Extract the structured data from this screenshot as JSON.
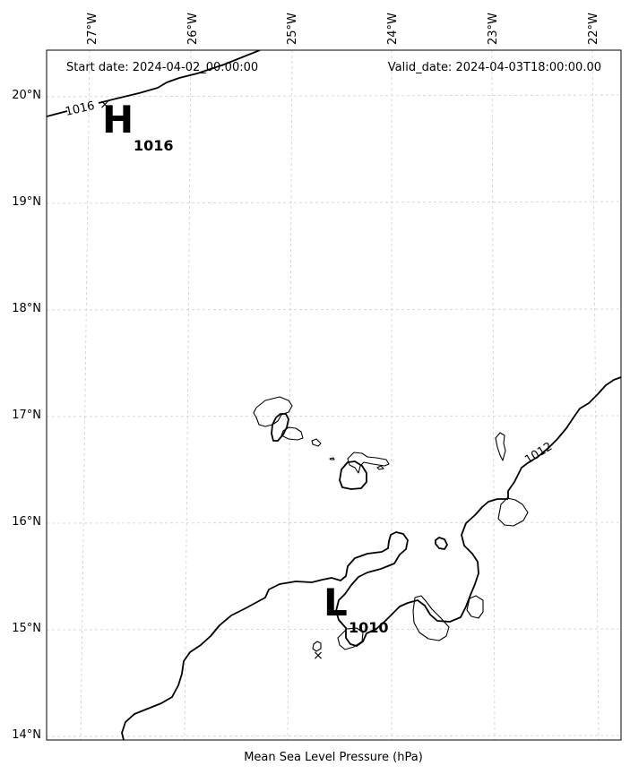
{
  "map": {
    "start_date": "Start date: 2024-04-02_00:00:00",
    "valid_date": "Valid_date: 2024-04-03T18:00:00.00",
    "footer_label": "Mean Sea Level Pressure (hPa)",
    "lon_ticks": [
      "27°W",
      "26°W",
      "25°W",
      "24°W",
      "23°W",
      "22°W"
    ],
    "lat_ticks": [
      "20°N",
      "19°N",
      "18°N",
      "17°N",
      "16°N",
      "15°N",
      "14°N"
    ],
    "isobar_labels": [
      "1016",
      "1012"
    ],
    "high": {
      "letter": "H",
      "value": "1016"
    },
    "low": {
      "letter": "L",
      "value": "1010"
    },
    "marker_symbol": "×"
  }
}
